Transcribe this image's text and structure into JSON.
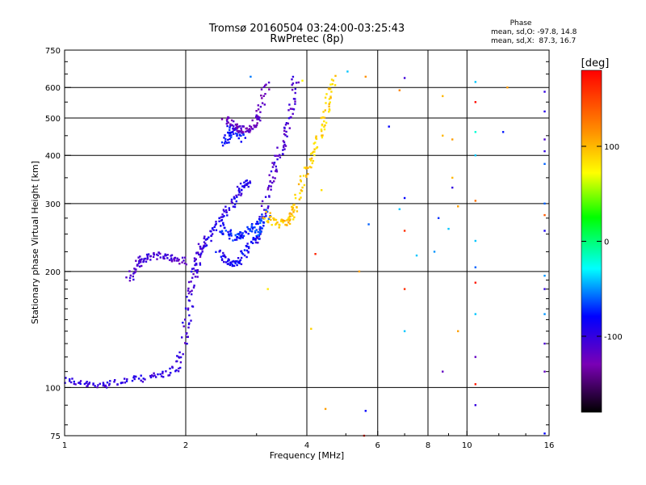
{
  "chart_data": {
    "type": "scatter",
    "title": "Tromsø 20160504 03:24:00-03:25:43",
    "subtitle": "RwPretec (8p)",
    "xlabel": "Frequency [MHz]",
    "ylabel": "Stationary phase Virtual Height [km]",
    "x_scale": "log",
    "y_scale": "log",
    "xlim": [
      1,
      16
    ],
    "ylim": [
      75,
      750
    ],
    "x_ticks": [
      1,
      2,
      4,
      6,
      8,
      10,
      16
    ],
    "x_tick_labels": [
      "1",
      "2",
      "4",
      "6",
      "8",
      "10",
      "16"
    ],
    "y_ticks": [
      75,
      100,
      200,
      300,
      400,
      500,
      600,
      750
    ],
    "y_tick_labels": [
      "75",
      "100",
      "200",
      "300",
      "400",
      "500",
      "600",
      "750"
    ],
    "grid": true,
    "stats": {
      "title": "Phase",
      "o_mode": {
        "label": "mean, sd,O:",
        "mean": -97.8,
        "sd": 14.8,
        "text": "mean, sd,O: -97.8, 14.8"
      },
      "x_mode": {
        "label": "mean, sd,X:",
        "mean": 87.3,
        "sd": 16.7,
        "text": "mean, sd,X:  87.3, 16.7"
      }
    },
    "colorbar": {
      "title": "[deg]",
      "range": [
        -180,
        180
      ],
      "ticks": [
        100,
        0,
        -100
      ],
      "tick_labels": [
        "100",
        "0",
        "-100"
      ],
      "colormap": "rainbow"
    },
    "traces": [
      {
        "x": [
          1.0,
          1.1,
          1.2,
          1.3,
          1.45,
          1.6,
          1.75,
          1.9,
          1.97
        ],
        "y": [
          105,
          102,
          101,
          103,
          104,
          106,
          108,
          112,
          125
        ],
        "phase": -100
      },
      {
        "x": [
          1.97,
          2.02,
          2.06,
          2.1,
          2.13,
          2.16,
          2.2
        ],
        "y": [
          130,
          150,
          175,
          195,
          210,
          225,
          235
        ],
        "phase": -105
      },
      {
        "x": [
          1.45,
          1.5,
          1.55,
          1.6,
          1.7,
          1.8,
          1.9,
          2.0
        ],
        "y": [
          190,
          205,
          215,
          218,
          220,
          217,
          215,
          212
        ],
        "phase": -110
      },
      {
        "x": [
          2.2,
          2.3,
          2.4,
          2.5,
          2.6,
          2.7,
          2.8,
          2.9
        ],
        "y": [
          230,
          245,
          265,
          280,
          300,
          320,
          335,
          345
        ],
        "phase": -95
      },
      {
        "x": [
          2.4,
          2.5,
          2.6,
          2.7,
          2.8,
          2.9,
          3.0
        ],
        "y": [
          225,
          215,
          210,
          212,
          222,
          235,
          250
        ],
        "phase": -85
      },
      {
        "x": [
          2.45,
          2.55,
          2.65,
          2.75,
          2.85,
          2.95
        ],
        "y": [
          260,
          250,
          245,
          248,
          255,
          265
        ],
        "phase": -75
      },
      {
        "x": [
          2.5,
          2.55,
          2.6,
          2.7,
          2.8
        ],
        "y": [
          430,
          450,
          470,
          455,
          440
        ],
        "phase": -80
      },
      {
        "x": [
          2.5,
          2.6,
          2.7,
          2.8,
          2.9,
          3.0,
          3.1,
          3.2
        ],
        "y": [
          500,
          480,
          470,
          465,
          470,
          490,
          540,
          640
        ],
        "phase": -120
      },
      {
        "x": [
          3.0,
          3.1,
          3.2,
          3.3,
          3.4,
          3.5,
          3.6,
          3.7,
          3.75
        ],
        "y": [
          235,
          275,
          320,
          360,
          395,
          430,
          480,
          560,
          640
        ],
        "phase": -110
      },
      {
        "x": [
          3.0,
          3.05,
          3.1,
          3.2
        ],
        "y": [
          245,
          260,
          270,
          285
        ],
        "phase": -70
      },
      {
        "x": [
          3.15,
          3.3,
          3.45,
          3.6,
          3.7,
          3.75
        ],
        "y": [
          280,
          270,
          265,
          270,
          285,
          300
        ],
        "phase": 95
      },
      {
        "x": [
          3.75,
          3.9,
          4.05,
          4.2,
          4.35,
          4.45,
          4.55,
          4.65
        ],
        "y": [
          300,
          345,
          385,
          420,
          470,
          520,
          580,
          640
        ],
        "phase": 90
      }
    ],
    "scattered": [
      {
        "x": 2.9,
        "y": 640,
        "phase": -55
      },
      {
        "x": 3.9,
        "y": 625,
        "phase": 75
      },
      {
        "x": 5.05,
        "y": 660,
        "phase": -40
      },
      {
        "x": 5.6,
        "y": 640,
        "phase": 115
      },
      {
        "x": 7.0,
        "y": 635,
        "phase": -105
      },
      {
        "x": 6.8,
        "y": 590,
        "phase": 120
      },
      {
        "x": 8.7,
        "y": 570,
        "phase": 100
      },
      {
        "x": 10.5,
        "y": 620,
        "phase": -40
      },
      {
        "x": 10.5,
        "y": 550,
        "phase": 175
      },
      {
        "x": 12.6,
        "y": 600,
        "phase": 110
      },
      {
        "x": 15.6,
        "y": 585,
        "phase": -100
      },
      {
        "x": 15.6,
        "y": 520,
        "phase": -95
      },
      {
        "x": 6.4,
        "y": 475,
        "phase": -80
      },
      {
        "x": 8.7,
        "y": 450,
        "phase": 100
      },
      {
        "x": 10.5,
        "y": 460,
        "phase": -20
      },
      {
        "x": 12.3,
        "y": 460,
        "phase": -75
      },
      {
        "x": 15.6,
        "y": 440,
        "phase": -110
      },
      {
        "x": 15.6,
        "y": 410,
        "phase": -100
      },
      {
        "x": 9.2,
        "y": 440,
        "phase": 110
      },
      {
        "x": 10.5,
        "y": 400,
        "phase": -40
      },
      {
        "x": 15.6,
        "y": 380,
        "phase": -60
      },
      {
        "x": 9.2,
        "y": 350,
        "phase": 100
      },
      {
        "x": 4.35,
        "y": 325,
        "phase": 85
      },
      {
        "x": 9.2,
        "y": 330,
        "phase": -100
      },
      {
        "x": 7.0,
        "y": 310,
        "phase": -80
      },
      {
        "x": 10.5,
        "y": 305,
        "phase": 130
      },
      {
        "x": 15.6,
        "y": 300,
        "phase": -60
      },
      {
        "x": 9.5,
        "y": 295,
        "phase": 110
      },
      {
        "x": 6.8,
        "y": 290,
        "phase": -40
      },
      {
        "x": 15.6,
        "y": 280,
        "phase": 140
      },
      {
        "x": 8.5,
        "y": 275,
        "phase": -70
      },
      {
        "x": 5.7,
        "y": 265,
        "phase": -60
      },
      {
        "x": 9.0,
        "y": 258,
        "phase": -40
      },
      {
        "x": 7.0,
        "y": 255,
        "phase": 160
      },
      {
        "x": 15.6,
        "y": 255,
        "phase": -90
      },
      {
        "x": 10.5,
        "y": 240,
        "phase": -40
      },
      {
        "x": 8.3,
        "y": 225,
        "phase": -50
      },
      {
        "x": 4.2,
        "y": 222,
        "phase": 165
      },
      {
        "x": 7.5,
        "y": 220,
        "phase": -40
      },
      {
        "x": 10.5,
        "y": 205,
        "phase": -60
      },
      {
        "x": 15.6,
        "y": 195,
        "phase": -50
      },
      {
        "x": 5.4,
        "y": 200,
        "phase": 110
      },
      {
        "x": 10.5,
        "y": 187,
        "phase": 170
      },
      {
        "x": 3.2,
        "y": 180,
        "phase": 80
      },
      {
        "x": 7.0,
        "y": 180,
        "phase": 160
      },
      {
        "x": 15.6,
        "y": 180,
        "phase": -100
      },
      {
        "x": 10.5,
        "y": 155,
        "phase": -40
      },
      {
        "x": 15.6,
        "y": 155,
        "phase": -50
      },
      {
        "x": 9.5,
        "y": 140,
        "phase": 110
      },
      {
        "x": 4.1,
        "y": 142,
        "phase": 90
      },
      {
        "x": 7.0,
        "y": 140,
        "phase": -40
      },
      {
        "x": 15.6,
        "y": 130,
        "phase": -110
      },
      {
        "x": 10.5,
        "y": 120,
        "phase": -120
      },
      {
        "x": 8.7,
        "y": 110,
        "phase": -120
      },
      {
        "x": 15.6,
        "y": 110,
        "phase": -120
      },
      {
        "x": 10.5,
        "y": 102,
        "phase": 170
      },
      {
        "x": 10.5,
        "y": 90,
        "phase": -100
      },
      {
        "x": 4.45,
        "y": 88,
        "phase": 110
      },
      {
        "x": 5.6,
        "y": 87,
        "phase": -80
      },
      {
        "x": 5.55,
        "y": 75,
        "phase": 165
      },
      {
        "x": 15.6,
        "y": 76,
        "phase": -80
      }
    ]
  }
}
